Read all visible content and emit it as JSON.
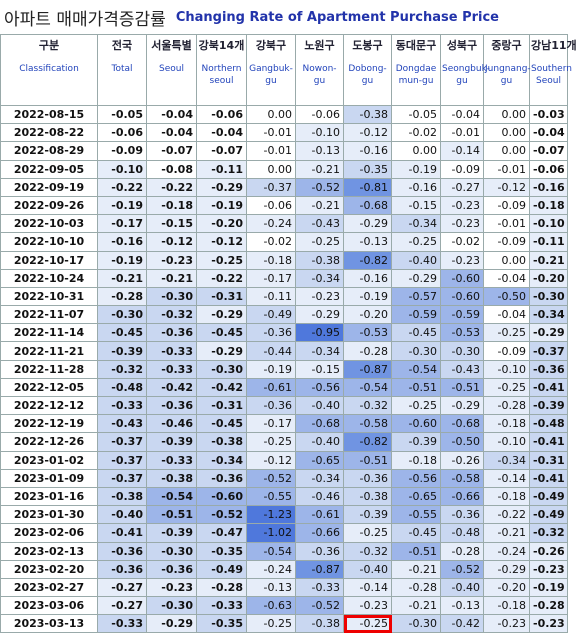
{
  "header": {
    "title_ko": "아파트 매매가격증감률",
    "title_en": "Changing Rate of Apartment Purchase Price"
  },
  "table": {
    "columns": [
      {
        "ko": "구분",
        "en": "Classification"
      },
      {
        "ko": "전국",
        "en": "Total"
      },
      {
        "ko": "서울특별",
        "en": "Seoul"
      },
      {
        "ko": "강북14개",
        "en": "Northern seoul"
      },
      {
        "ko": "강북구",
        "en": "Gangbuk-gu"
      },
      {
        "ko": "노원구",
        "en": "Nowon-gu"
      },
      {
        "ko": "도봉구",
        "en": "Dobong-gu"
      },
      {
        "ko": "동대문구",
        "en": "Dongdae mun-gu"
      },
      {
        "ko": "성북구",
        "en": "Seongbuk-gu"
      },
      {
        "ko": "중랑구",
        "en": "Jungnang-gu"
      },
      {
        "ko": "강남11개",
        "en": "Southern Seoul"
      }
    ],
    "rows": [
      [
        "2022-08-15",
        "-0.05",
        "-0.04",
        "-0.06",
        "0.00",
        "-0.06",
        "-0.38",
        "-0.05",
        "-0.04",
        "0.00",
        "-0.03"
      ],
      [
        "2022-08-22",
        "-0.06",
        "-0.04",
        "-0.04",
        "-0.01",
        "-0.10",
        "-0.12",
        "-0.02",
        "-0.01",
        "0.00",
        "-0.04"
      ],
      [
        "2022-08-29",
        "-0.09",
        "-0.07",
        "-0.07",
        "-0.01",
        "-0.13",
        "-0.16",
        "0.00",
        "-0.14",
        "0.00",
        "-0.07"
      ],
      [
        "2022-09-05",
        "-0.10",
        "-0.08",
        "-0.11",
        "0.00",
        "-0.21",
        "-0.35",
        "-0.19",
        "-0.09",
        "-0.01",
        "-0.06"
      ],
      [
        "2022-09-19",
        "-0.22",
        "-0.22",
        "-0.29",
        "-0.37",
        "-0.52",
        "-0.81",
        "-0.16",
        "-0.27",
        "-0.12",
        "-0.16"
      ],
      [
        "2022-09-26",
        "-0.19",
        "-0.18",
        "-0.19",
        "-0.06",
        "-0.21",
        "-0.68",
        "-0.15",
        "-0.23",
        "-0.09",
        "-0.18"
      ],
      [
        "2022-10-03",
        "-0.17",
        "-0.15",
        "-0.20",
        "-0.24",
        "-0.43",
        "-0.29",
        "-0.34",
        "-0.23",
        "-0.01",
        "-0.10"
      ],
      [
        "2022-10-10",
        "-0.16",
        "-0.12",
        "-0.12",
        "-0.02",
        "-0.25",
        "-0.13",
        "-0.25",
        "-0.02",
        "-0.09",
        "-0.11"
      ],
      [
        "2022-10-17",
        "-0.19",
        "-0.23",
        "-0.25",
        "-0.18",
        "-0.38",
        "-0.82",
        "-0.40",
        "-0.23",
        "0.00",
        "-0.21"
      ],
      [
        "2022-10-24",
        "-0.21",
        "-0.21",
        "-0.22",
        "-0.17",
        "-0.34",
        "-0.16",
        "-0.29",
        "-0.60",
        "-0.04",
        "-0.20"
      ],
      [
        "2022-10-31",
        "-0.28",
        "-0.30",
        "-0.31",
        "-0.11",
        "-0.23",
        "-0.19",
        "-0.57",
        "-0.60",
        "-0.50",
        "-0.30"
      ],
      [
        "2022-11-07",
        "-0.30",
        "-0.32",
        "-0.29",
        "-0.49",
        "-0.29",
        "-0.20",
        "-0.59",
        "-0.59",
        "-0.04",
        "-0.34"
      ],
      [
        "2022-11-14",
        "-0.45",
        "-0.36",
        "-0.45",
        "-0.36",
        "-0.95",
        "-0.53",
        "-0.45",
        "-0.53",
        "-0.25",
        "-0.29"
      ],
      [
        "2022-11-21",
        "-0.39",
        "-0.33",
        "-0.29",
        "-0.44",
        "-0.34",
        "-0.28",
        "-0.30",
        "-0.30",
        "-0.09",
        "-0.37"
      ],
      [
        "2022-11-28",
        "-0.32",
        "-0.33",
        "-0.30",
        "-0.19",
        "-0.15",
        "-0.87",
        "-0.54",
        "-0.43",
        "-0.10",
        "-0.36"
      ],
      [
        "2022-12-05",
        "-0.48",
        "-0.42",
        "-0.42",
        "-0.61",
        "-0.56",
        "-0.54",
        "-0.51",
        "-0.51",
        "-0.25",
        "-0.41"
      ],
      [
        "2022-12-12",
        "-0.33",
        "-0.36",
        "-0.31",
        "-0.36",
        "-0.40",
        "-0.32",
        "-0.25",
        "-0.29",
        "-0.28",
        "-0.39"
      ],
      [
        "2022-12-19",
        "-0.43",
        "-0.46",
        "-0.45",
        "-0.17",
        "-0.68",
        "-0.58",
        "-0.60",
        "-0.68",
        "-0.18",
        "-0.48"
      ],
      [
        "2022-12-26",
        "-0.37",
        "-0.39",
        "-0.38",
        "-0.25",
        "-0.40",
        "-0.82",
        "-0.39",
        "-0.50",
        "-0.10",
        "-0.41"
      ],
      [
        "2023-01-02",
        "-0.37",
        "-0.33",
        "-0.34",
        "-0.12",
        "-0.65",
        "-0.51",
        "-0.18",
        "-0.26",
        "-0.34",
        "-0.31"
      ],
      [
        "2023-01-09",
        "-0.37",
        "-0.38",
        "-0.36",
        "-0.52",
        "-0.34",
        "-0.36",
        "-0.56",
        "-0.58",
        "-0.14",
        "-0.41"
      ],
      [
        "2023-01-16",
        "-0.38",
        "-0.54",
        "-0.60",
        "-0.55",
        "-0.46",
        "-0.38",
        "-0.65",
        "-0.66",
        "-0.18",
        "-0.49"
      ],
      [
        "2023-01-30",
        "-0.40",
        "-0.51",
        "-0.52",
        "-1.23",
        "-0.61",
        "-0.39",
        "-0.55",
        "-0.36",
        "-0.22",
        "-0.49"
      ],
      [
        "2023-02-06",
        "-0.41",
        "-0.39",
        "-0.47",
        "-1.02",
        "-0.66",
        "-0.25",
        "-0.45",
        "-0.48",
        "-0.21",
        "-0.32"
      ],
      [
        "2023-02-13",
        "-0.36",
        "-0.30",
        "-0.35",
        "-0.54",
        "-0.36",
        "-0.32",
        "-0.51",
        "-0.28",
        "-0.24",
        "-0.26"
      ],
      [
        "2023-02-20",
        "-0.36",
        "-0.36",
        "-0.49",
        "-0.24",
        "-0.87",
        "-0.40",
        "-0.21",
        "-0.52",
        "-0.29",
        "-0.23"
      ],
      [
        "2023-02-27",
        "-0.27",
        "-0.23",
        "-0.28",
        "-0.13",
        "-0.33",
        "-0.14",
        "-0.28",
        "-0.40",
        "-0.20",
        "-0.19"
      ],
      [
        "2023-03-06",
        "-0.27",
        "-0.30",
        "-0.33",
        "-0.63",
        "-0.52",
        "-0.23",
        "-0.21",
        "-0.13",
        "-0.18",
        "-0.28"
      ],
      [
        "2023-03-13",
        "-0.33",
        "-0.29",
        "-0.35",
        "-0.25",
        "-0.38",
        "-0.25",
        "-0.30",
        "-0.42",
        "-0.23",
        "-0.23"
      ]
    ]
  }
}
